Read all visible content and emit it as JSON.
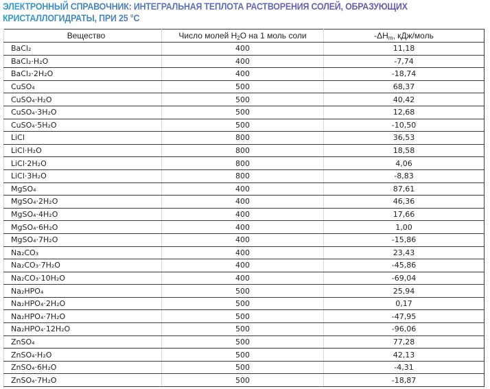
{
  "title": "ЭЛЕКТРОННЫЙ СПРАВОЧНИК: ИНТЕГРАЛЬНАЯ ТЕПЛОТА РАСТВОРЕНИЯ СОЛЕЙ, ОБРАЗУЮЩИХ КРИСТАЛЛОГИДРАТЫ, ПРИ 25 °С",
  "header": {
    "substance": "Вещество",
    "moles_pre": "Число молей H",
    "moles_sub": "2",
    "moles_post": "O на 1 моль соли",
    "enthalpy_pre": "-ΔH",
    "enthalpy_sub": "m",
    "enthalpy_post": ", кДж/моль"
  },
  "rows": [
    [
      "BaCl₂",
      "400",
      "11,18"
    ],
    [
      "BaCl₂·H₂O",
      "400",
      "-7,74"
    ],
    [
      "BaCl₂·2H₂O",
      "400",
      "-18,74"
    ],
    [
      "CuSO₄",
      "500",
      "68,37"
    ],
    [
      "CuSO₄·H₂O",
      "500",
      "40,42"
    ],
    [
      "CuSO₄·3H₂O",
      "500",
      "12,68"
    ],
    [
      "CuSO₄·5H₂O",
      "500",
      "-10,50"
    ],
    [
      "LiCl",
      "800",
      "36,53"
    ],
    [
      "LiCl·H₂O",
      "800",
      "18,58"
    ],
    [
      "LiCl·2H₂O",
      "800",
      "4,06"
    ],
    [
      "LiCl·3H₂O",
      "800",
      "-8,83"
    ],
    [
      "MgSO₄",
      "400",
      "87,61"
    ],
    [
      "MgSO₄·2H₂O",
      "400",
      "46,36"
    ],
    [
      "MgSO₄·4H₂O",
      "400",
      "17,66"
    ],
    [
      "MgSO₄·6H₂O",
      "400",
      "1,00"
    ],
    [
      "MgSO₄·7H₂O",
      "400",
      "-15,86"
    ],
    [
      "Na₂CO₃",
      "400",
      "23,43"
    ],
    [
      "Na₂CO₃·7H₂O",
      "400",
      "-45,86"
    ],
    [
      "Na₂CO₃·10H₂O",
      "400",
      "-69,04"
    ],
    [
      "Na₂HPO₄",
      "500",
      "25,94"
    ],
    [
      "Na₂HPO₄·2H₂O",
      "500",
      "0,17"
    ],
    [
      "Na₂HPO₄·7H₂O",
      "500",
      "-47,95"
    ],
    [
      "Na₂HPO₄·12H₂O",
      "500",
      "-96,06"
    ],
    [
      "ZnSO₄",
      "500",
      "77,28"
    ],
    [
      "ZnSO₄·H₂O",
      "500",
      "42,13"
    ],
    [
      "ZnSO₄·6H₂O",
      "500",
      "-4,31"
    ],
    [
      "ZnSO₄·7H₂O",
      "500",
      "-18,87"
    ]
  ]
}
